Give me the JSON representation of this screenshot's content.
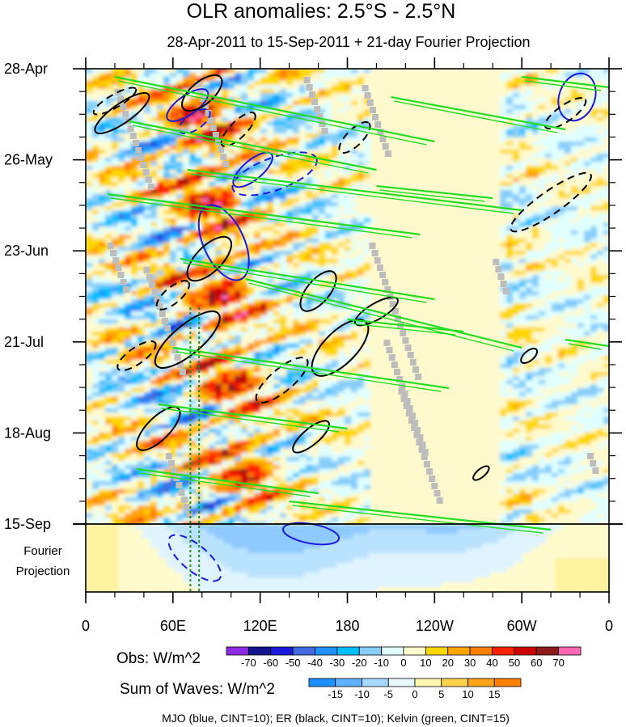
{
  "chart_data": {
    "type": "heatmap",
    "title": "OLR anomalies: 2.5°S - 2.5°N",
    "subtitle": "28-Apr-2011 to 15-Sep-2011 + 21-day Fourier Projection",
    "y_tick_labels": [
      "28-Apr",
      "26-May",
      "23-Jun",
      "21-Jul",
      "18-Aug",
      "15-Sep"
    ],
    "projection_label": [
      "Fourier",
      "Projection"
    ],
    "x_tick_labels": [
      "0",
      "60E",
      "120E",
      "180",
      "120W",
      "60W",
      "0"
    ],
    "xlim": [
      0,
      360
    ],
    "observed_period": [
      "28-Apr-2011",
      "15-Sep-2011"
    ],
    "projection_days": 21,
    "obs_colorbar": {
      "label": "Obs: W/m^2",
      "levels": [
        "-70",
        "-60",
        "-50",
        "-40",
        "-30",
        "-20",
        "-10",
        "0",
        "10",
        "20",
        "30",
        "40",
        "50",
        "60",
        "70"
      ],
      "colors": [
        "#8a2be2",
        "#13138e",
        "#1a1adc",
        "#4169e1",
        "#1e90ff",
        "#00bfff",
        "#87cefa",
        "#e0ffff",
        "#fffacd",
        "#ffd700",
        "#ffa500",
        "#ff7f00",
        "#ff2200",
        "#cc0000",
        "#8b1a1a",
        "#ff69b4"
      ]
    },
    "waves_colorbar": {
      "label": "Sum of Waves: W/m^2",
      "levels": [
        "-15",
        "-10",
        "-5",
        "0",
        "5",
        "10",
        "15"
      ],
      "colors": [
        "#1e90ff",
        "#5fb0ff",
        "#a7d8ff",
        "#e8f8ff",
        "#fff6b0",
        "#ffd24d",
        "#ffa31a",
        "#ff7f00"
      ]
    },
    "contour_legend": "MJO (blue, CINT=10); ER (black, CINT=10); Kelvin (green, CINT=15)",
    "contour_colors": {
      "mjo": "#1a1adc",
      "er": "#000000",
      "kelvin": "#22dd22"
    },
    "dotted_lines_lon": [
      72,
      78
    ]
  }
}
